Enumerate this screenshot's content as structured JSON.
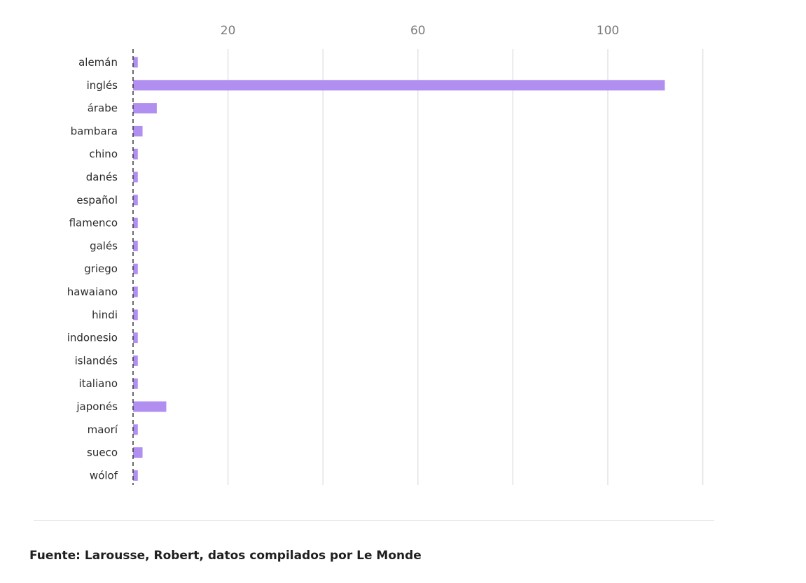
{
  "chart_data": {
    "type": "bar",
    "orientation": "horizontal",
    "categories": [
      "alemán",
      "inglés",
      "árabe",
      "bambara",
      "chino",
      "danés",
      "español",
      "flamenco",
      "galés",
      "griego",
      "hawaiano",
      "hindi",
      "indonesio",
      "islandés",
      "italiano",
      "japonés",
      "maorí",
      "sueco",
      "wólof"
    ],
    "values": [
      1,
      112,
      5,
      2,
      1,
      1,
      1,
      1,
      1,
      1,
      1,
      1,
      1,
      1,
      1,
      7,
      1,
      2,
      1
    ],
    "xticks": [
      20,
      60,
      100
    ],
    "xlim": [
      0,
      120
    ],
    "grid": true,
    "bar_color": "#b18ff0",
    "title": "",
    "xlabel": "",
    "ylabel": ""
  },
  "source": "Fuente: Larousse, Robert, datos compilados por Le Monde"
}
